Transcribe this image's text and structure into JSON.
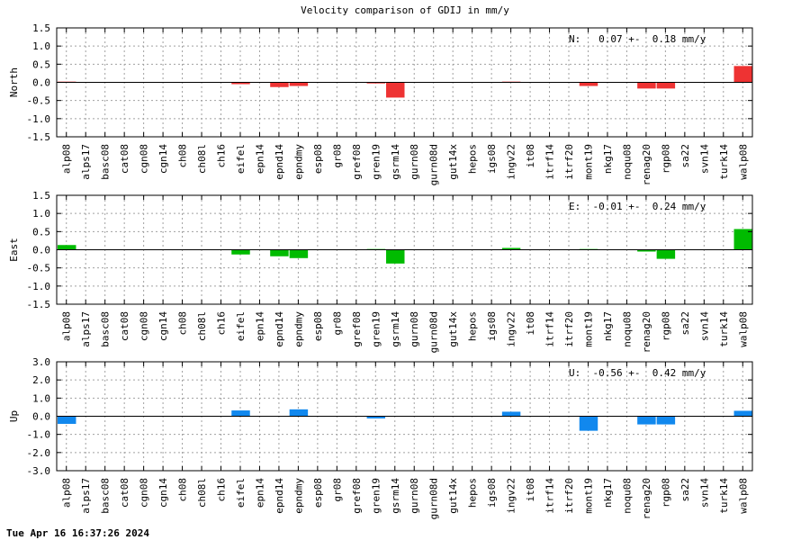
{
  "chart_title": "Velocity comparison of GDIJ in mm/y",
  "timestamp": "Tue Apr 16 16:37:26 2024",
  "chart_data": [
    {
      "type": "bar",
      "ylabel": "North",
      "annotation": "N:   0.07 +-  0.18 mm/y",
      "color": "#ee3333",
      "ylim": [
        -1.5,
        1.5
      ],
      "yticks": [
        -1.5,
        -1.0,
        -0.5,
        0.0,
        0.5,
        1.0,
        1.5
      ],
      "ytick_labels": [
        "-1.5",
        "-1.0",
        "-0.5",
        "0.0",
        "0.5",
        "1.0",
        "1.5"
      ],
      "grid": true,
      "categories": [
        "alp08",
        "alps17",
        "basc08",
        "cat08",
        "cgn08",
        "cgn14",
        "ch08",
        "ch08l",
        "ch16",
        "eifel",
        "epn14",
        "epnd14",
        "epndmy",
        "esp08",
        "gr08",
        "gref08",
        "gren19",
        "gsrm14",
        "gurn08",
        "gurn08d",
        "gut14x",
        "hepos",
        "igs08",
        "ingv22",
        "it08",
        "itrf14",
        "itrf20",
        "mont19",
        "nkg17",
        "noqu08",
        "renag20",
        "rgp08",
        "sa22",
        "svn14",
        "turk14",
        "walp08"
      ],
      "values": [
        0.02,
        0,
        0,
        0,
        0,
        0,
        0,
        0,
        0,
        -0.05,
        0,
        -0.13,
        -0.1,
        0,
        0,
        0,
        -0.03,
        -0.42,
        0,
        0,
        0,
        0,
        0,
        0.02,
        0,
        0,
        0,
        -0.1,
        0,
        0,
        -0.17,
        -0.17,
        0,
        0,
        0,
        0.45
      ]
    },
    {
      "type": "bar",
      "ylabel": "East",
      "annotation": "E:  -0.01 +-  0.24 mm/y",
      "color": "#00bb00",
      "ylim": [
        -1.5,
        1.5
      ],
      "yticks": [
        -1.5,
        -1.0,
        -0.5,
        0.0,
        0.5,
        1.0,
        1.5
      ],
      "ytick_labels": [
        "-1.5",
        "-1.0",
        "-0.5",
        "0.0",
        "0.5",
        "1.0",
        "1.5"
      ],
      "grid": true,
      "categories": [
        "alp08",
        "alps17",
        "basc08",
        "cat08",
        "cgn08",
        "cgn14",
        "ch08",
        "ch08l",
        "ch16",
        "eifel",
        "epn14",
        "epnd14",
        "epndmy",
        "esp08",
        "gr08",
        "gref08",
        "gren19",
        "gsrm14",
        "gurn08",
        "gurn08d",
        "gut14x",
        "hepos",
        "igs08",
        "ingv22",
        "it08",
        "itrf14",
        "itrf20",
        "mont19",
        "nkg17",
        "noqu08",
        "renag20",
        "rgp08",
        "sa22",
        "svn14",
        "turk14",
        "walp08"
      ],
      "values": [
        0.13,
        0,
        0,
        0,
        0,
        0,
        0,
        0,
        0,
        -0.13,
        0,
        -0.18,
        -0.23,
        0,
        0,
        0,
        0.02,
        -0.38,
        0,
        0,
        0,
        0,
        0,
        0.05,
        0,
        0,
        0,
        0.02,
        0,
        0,
        -0.05,
        -0.25,
        0,
        0,
        0,
        0.57
      ]
    },
    {
      "type": "bar",
      "ylabel": "Up",
      "annotation": "U:  -0.56 +-  0.42 mm/y",
      "color": "#1188ee",
      "ylim": [
        -3.0,
        3.0
      ],
      "yticks": [
        -3.0,
        -2.0,
        -1.0,
        0.0,
        1.0,
        2.0,
        3.0
      ],
      "ytick_labels": [
        "-3.0",
        "-2.0",
        "-1.0",
        "0.0",
        "1.0",
        "2.0",
        "3.0"
      ],
      "grid": true,
      "categories": [
        "alp08",
        "alps17",
        "basc08",
        "cat08",
        "cgn08",
        "cgn14",
        "ch08",
        "ch08l",
        "ch16",
        "eifel",
        "epn14",
        "epnd14",
        "epndmy",
        "esp08",
        "gr08",
        "gref08",
        "gren19",
        "gsrm14",
        "gurn08",
        "gurn08d",
        "gut14x",
        "hepos",
        "igs08",
        "ingv22",
        "it08",
        "itrf14",
        "itrf20",
        "mont19",
        "nkg17",
        "noqu08",
        "renag20",
        "rgp08",
        "sa22",
        "svn14",
        "turk14",
        "walp08"
      ],
      "values": [
        -0.42,
        0,
        0,
        0,
        0,
        0,
        0,
        0,
        0,
        0.32,
        0,
        0,
        0.38,
        0,
        0,
        0,
        -0.12,
        0,
        0,
        0,
        0,
        0,
        0,
        0.25,
        0,
        0,
        0,
        -0.8,
        0,
        0,
        -0.45,
        -0.45,
        0,
        0,
        0,
        0.3
      ]
    }
  ]
}
